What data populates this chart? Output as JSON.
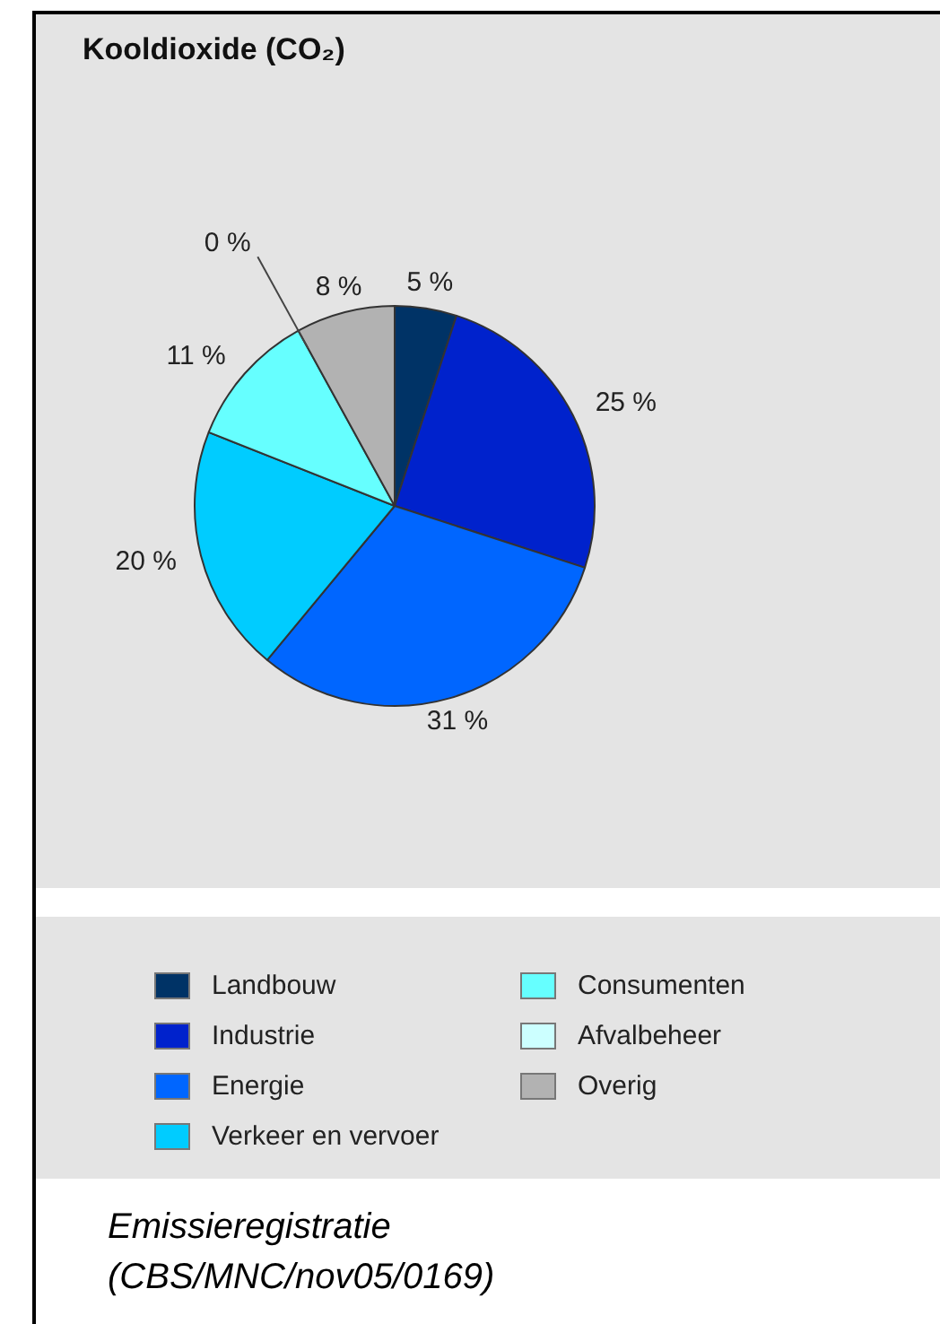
{
  "chart_data": {
    "type": "pie",
    "title": "Kooldioxide (CO₂)",
    "categories": [
      "Landbouw",
      "Industrie",
      "Energie",
      "Verkeer en vervoer",
      "Consumenten",
      "Afvalbeheer",
      "Overig"
    ],
    "values": [
      5,
      25,
      31,
      20,
      11,
      0,
      8
    ],
    "colors": [
      "#003366",
      "#0022cc",
      "#0066ff",
      "#00ccff",
      "#66ffff",
      "#ccffff",
      "#b2b2b2"
    ],
    "value_labels": [
      "5 %",
      "25 %",
      "31 %",
      "20 %",
      "11 %",
      "0 %",
      "8 %"
    ],
    "legend": "bottom",
    "annotations": [
      "Emissieregistratie (CBS/MNC/nov05/0169)"
    ]
  }
}
